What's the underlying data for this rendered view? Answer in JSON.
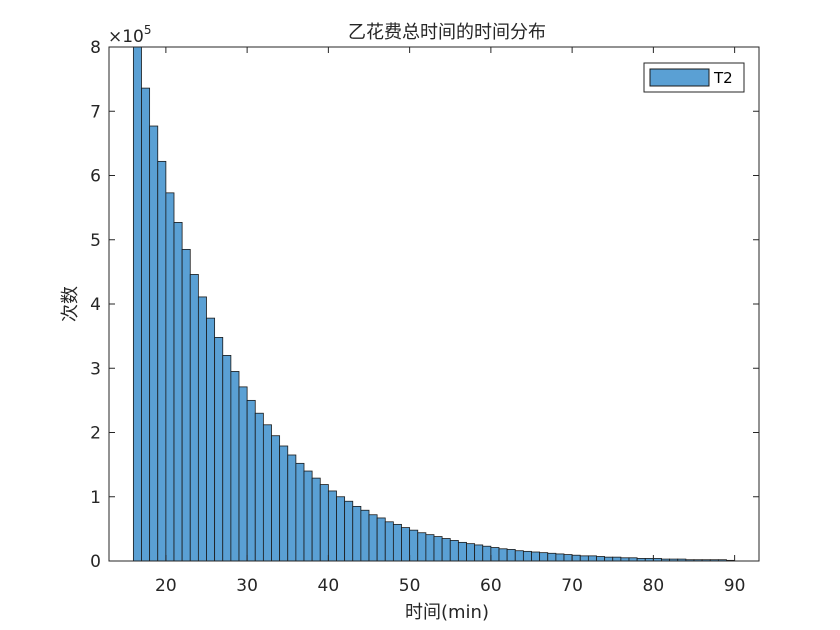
{
  "chart_data": {
    "type": "bar",
    "title": "乙花费总时间的时间分布",
    "xlabel": "时间(min)",
    "ylabel": "次数",
    "y_multiplier_label": "×10",
    "y_multiplier_exponent": "5",
    "xlim": [
      13,
      93
    ],
    "ylim": [
      0,
      8
    ],
    "xticks": [
      20,
      30,
      40,
      50,
      60,
      70,
      80,
      90
    ],
    "yticks": [
      0,
      1,
      2,
      3,
      4,
      5,
      6,
      7,
      8
    ],
    "bin_start": 16,
    "bin_width": 1,
    "series": [
      {
        "name": "T2",
        "color": "#5aa0d4",
        "edge_color": "#1a1a1a",
        "values": [
          8.0,
          7.36,
          6.77,
          6.22,
          5.73,
          5.27,
          4.85,
          4.46,
          4.11,
          3.78,
          3.48,
          3.2,
          2.95,
          2.71,
          2.5,
          2.3,
          2.12,
          1.95,
          1.79,
          1.65,
          1.52,
          1.4,
          1.29,
          1.19,
          1.09,
          1.0,
          0.93,
          0.85,
          0.79,
          0.72,
          0.67,
          0.61,
          0.57,
          0.52,
          0.48,
          0.44,
          0.41,
          0.38,
          0.35,
          0.32,
          0.29,
          0.27,
          0.25,
          0.23,
          0.21,
          0.19,
          0.18,
          0.16,
          0.15,
          0.14,
          0.13,
          0.12,
          0.11,
          0.1,
          0.09,
          0.08,
          0.08,
          0.07,
          0.06,
          0.06,
          0.05,
          0.05,
          0.04,
          0.04,
          0.04,
          0.03,
          0.03,
          0.03,
          0.02,
          0.02,
          0.02,
          0.02,
          0.02,
          0.01
        ]
      }
    ],
    "legend_position": "top-right"
  }
}
